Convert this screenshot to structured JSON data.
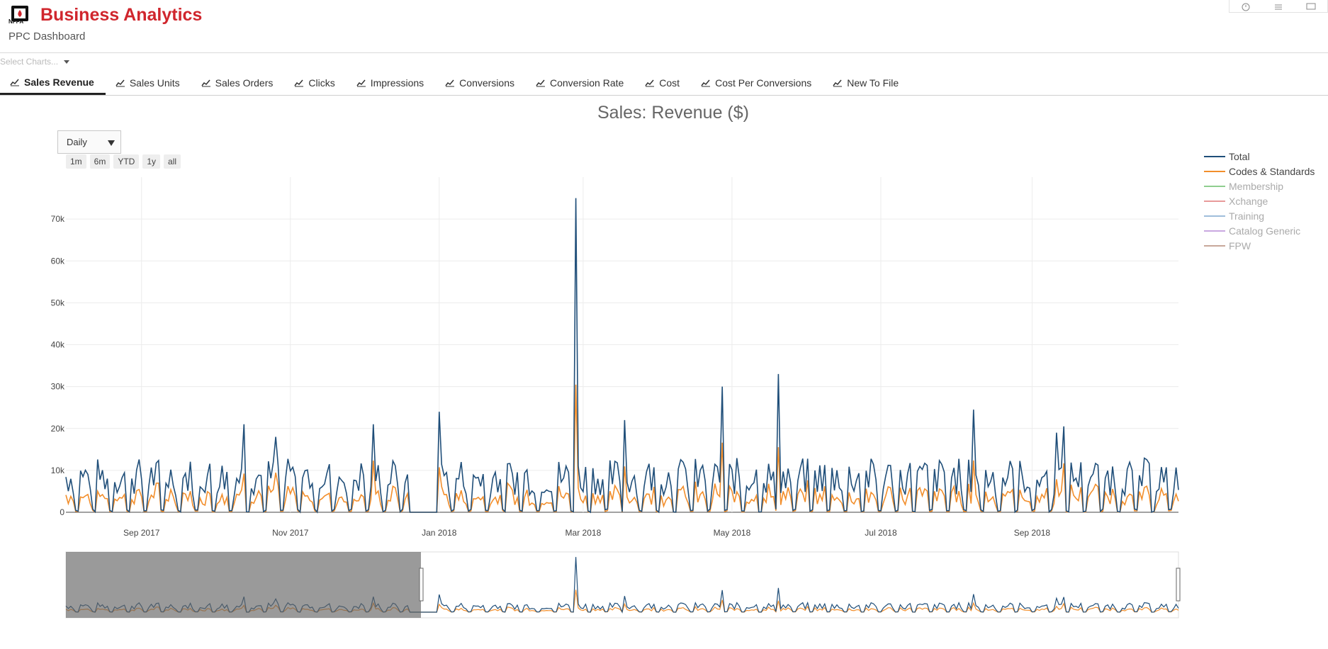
{
  "header": {
    "logo_text": "NFPA",
    "title": "Business Analytics",
    "subtitle": "PPC Dashboard"
  },
  "select": {
    "placeholder": "Select Charts..."
  },
  "tabs": [
    {
      "label": "Sales Revenue",
      "active": true
    },
    {
      "label": "Sales Units"
    },
    {
      "label": "Sales Orders"
    },
    {
      "label": "Clicks"
    },
    {
      "label": "Impressions"
    },
    {
      "label": "Conversions"
    },
    {
      "label": "Conversion Rate"
    },
    {
      "label": "Cost"
    },
    {
      "label": "Cost Per Conversions"
    },
    {
      "label": "New To File"
    }
  ],
  "controls": {
    "interval": "Daily",
    "ranges": [
      "1m",
      "6m",
      "YTD",
      "1y",
      "all"
    ]
  },
  "colors": {
    "brand": "#d0262d",
    "total": "#1f4e79",
    "codes": "#f28e2b",
    "membership": "#8fce8f",
    "xchange": "#e89a9a",
    "training": "#9fbedb",
    "catalog": "#c9a8e0",
    "fpw": "#c8a89a"
  },
  "chart_data": {
    "type": "line",
    "title": "Sales: Revenue ($)",
    "x_range": [
      "2017-08-01",
      "2018-10-31"
    ],
    "ylim": [
      0,
      80000
    ],
    "y_ticks": [
      0,
      10000,
      20000,
      30000,
      40000,
      50000,
      60000,
      70000
    ],
    "y_tick_labels": [
      "0",
      "10k",
      "20k",
      "30k",
      "40k",
      "50k",
      "60k",
      "70k"
    ],
    "x_ticks": [
      "2017-09-01",
      "2017-11-01",
      "2018-01-01",
      "2018-03-01",
      "2018-05-01",
      "2018-07-01",
      "2018-09-01"
    ],
    "x_tick_labels": [
      "Sep 2017",
      "Nov 2017",
      "Jan 2018",
      "Mar 2018",
      "May 2018",
      "Jul 2018",
      "Sep 2018"
    ],
    "grid": true,
    "legend_position": "right",
    "series": [
      {
        "name": "Total",
        "visible": true,
        "color": "#1f4e79"
      },
      {
        "name": "Codes & Standards",
        "visible": true,
        "color": "#f28e2b"
      },
      {
        "name": "Membership",
        "visible": false,
        "color": "#8fce8f"
      },
      {
        "name": "Xchange",
        "visible": false,
        "color": "#e89a9a"
      },
      {
        "name": "Training",
        "visible": false,
        "color": "#9fbedb"
      },
      {
        "name": "Catalog Generic",
        "visible": false,
        "color": "#c9a8e0"
      },
      {
        "name": "FPW",
        "visible": false,
        "color": "#c8a89a"
      }
    ],
    "total_peaks": [
      {
        "date": "2017-10-13",
        "value": 21000
      },
      {
        "date": "2017-10-26",
        "value": 18000
      },
      {
        "date": "2017-12-05",
        "value": 21000
      },
      {
        "date": "2018-01-01",
        "value": 24000
      },
      {
        "date": "2018-02-26",
        "value": 75000
      },
      {
        "date": "2018-03-18",
        "value": 22000
      },
      {
        "date": "2018-04-27",
        "value": 30000
      },
      {
        "date": "2018-05-20",
        "value": 33000
      },
      {
        "date": "2018-08-08",
        "value": 24500
      },
      {
        "date": "2018-09-11",
        "value": 19000
      },
      {
        "date": "2018-09-14",
        "value": 20500
      }
    ],
    "holiday_gap": [
      "2017-12-20",
      "2017-12-31"
    ]
  }
}
